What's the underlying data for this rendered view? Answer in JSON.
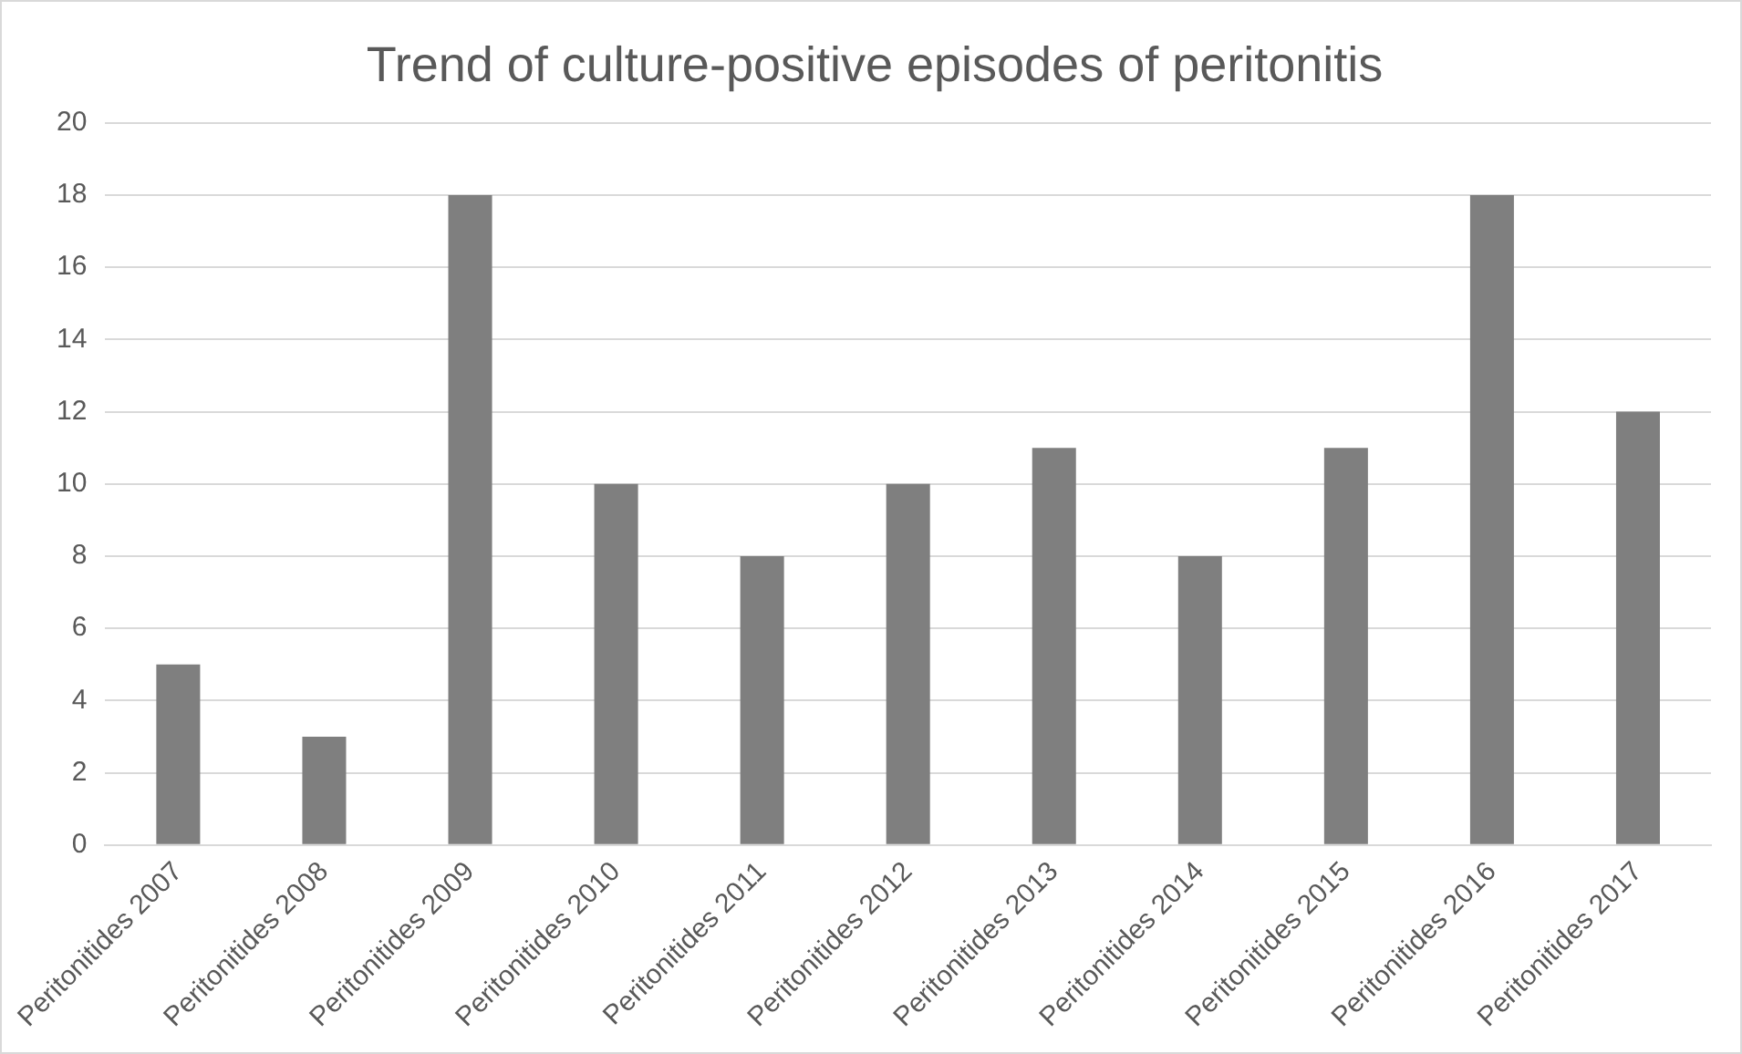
{
  "chart_data": {
    "type": "bar",
    "title": "Trend of culture-positive episodes of peritonitis",
    "categories": [
      "Peritonitides 2007",
      "Peritonitides 2008",
      "Peritonitides 2009",
      "Peritonitides 2010",
      "Peritonitides 2011",
      "Peritonitides 2012",
      "Peritonitides 2013",
      "Peritonitides 2014",
      "Peritonitides 2015",
      "Peritonitides 2016",
      "Peritonitides 2017"
    ],
    "values": [
      5,
      3,
      18,
      10,
      8,
      10,
      11,
      8,
      11,
      18,
      12
    ],
    "color": "#7f7f7f",
    "ylim": [
      0,
      20
    ],
    "yticks": [
      0,
      2,
      4,
      6,
      8,
      10,
      12,
      14,
      16,
      18,
      20
    ],
    "grid": "y"
  }
}
